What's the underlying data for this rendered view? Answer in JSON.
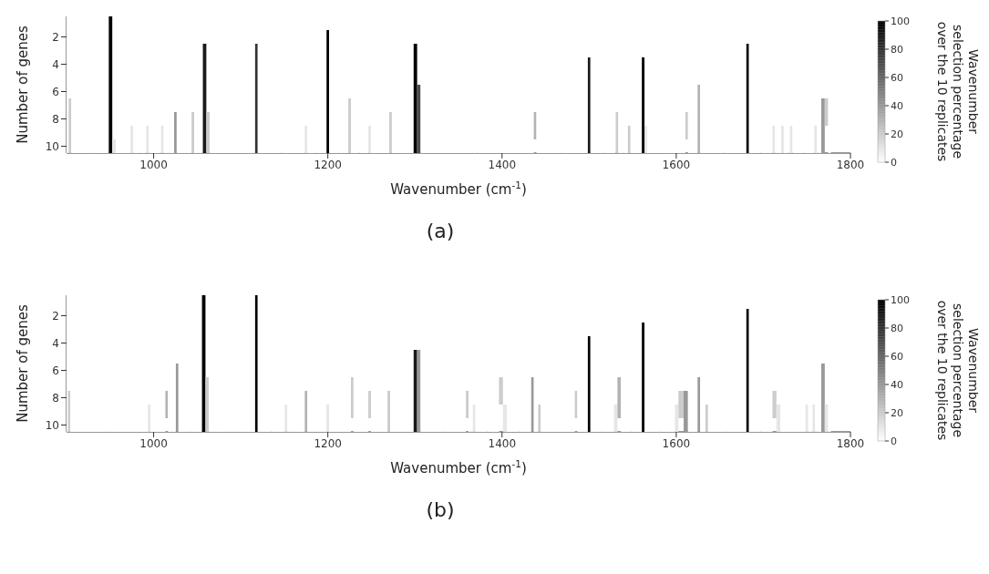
{
  "chart_data": [
    {
      "type": "heatmap",
      "xlabel": "Wavenumber (cm$^{-1}$)",
      "ylabel": "Number of genes",
      "clabel": "Wavenumber\nselection percentage\nover the 10 replicates",
      "annotations": [
        "(a)"
      ],
      "x": [
        901,
        904,
        907,
        947,
        950,
        955,
        958,
        972,
        975,
        978,
        990,
        993,
        996,
        1007,
        1010,
        1013,
        1022,
        1025,
        1028,
        1042,
        1045,
        1048,
        1055,
        1058,
        1063,
        1066,
        1115,
        1118,
        1121,
        1172,
        1175,
        1178,
        1197,
        1200,
        1203,
        1222,
        1225,
        1228,
        1245,
        1248,
        1251,
        1269,
        1272,
        1275,
        1297,
        1300,
        1305,
        1308,
        1435,
        1438,
        1441,
        1497,
        1500,
        1503,
        1529,
        1532,
        1535,
        1543,
        1546,
        1549,
        1559,
        1562,
        1565,
        1568,
        1609,
        1612,
        1615,
        1623,
        1626,
        1629,
        1679,
        1682,
        1685,
        1709,
        1712,
        1715,
        1719,
        1722,
        1725,
        1729,
        1732,
        1735,
        1757,
        1760,
        1763,
        1765,
        1768,
        1773,
        1776
      ],
      "xlim": [
        900,
        1800
      ],
      "xticks": [
        1000,
        1200,
        1400,
        1600,
        1800
      ],
      "ylim": [
        10.5,
        0.5
      ],
      "yticks": [
        2,
        4,
        6,
        8,
        10
      ],
      "clim": [
        0,
        100
      ],
      "cticks": [
        0,
        20,
        40,
        60,
        80,
        100
      ],
      "cells": [
        [
          0,
          null,
          0,
          0,
          100,
          null,
          0,
          0,
          null,
          0,
          0,
          null,
          0,
          0,
          null,
          0,
          0,
          null,
          0,
          0,
          null,
          0,
          0,
          null,
          null,
          0,
          0,
          null,
          0,
          0,
          null,
          0,
          0,
          null,
          0,
          0,
          null,
          0,
          0,
          null,
          0,
          0,
          null,
          0,
          0,
          null,
          null,
          0,
          0,
          null,
          0,
          0,
          null,
          0,
          0,
          null,
          0,
          0,
          null,
          0,
          0,
          null,
          null,
          0,
          0,
          null,
          0,
          0,
          null,
          0,
          0,
          null,
          0,
          0,
          null,
          0,
          0,
          null,
          0,
          0,
          null,
          0,
          0,
          null,
          0,
          0,
          null,
          null,
          0
        ],
        [
          0,
          null,
          0,
          0,
          100,
          null,
          0,
          0,
          null,
          0,
          0,
          null,
          0,
          0,
          null,
          0,
          0,
          null,
          0,
          0,
          null,
          0,
          0,
          null,
          null,
          0,
          0,
          null,
          0,
          0,
          null,
          0,
          0,
          100,
          0,
          0,
          null,
          0,
          0,
          null,
          0,
          0,
          null,
          0,
          0,
          null,
          null,
          0,
          0,
          null,
          0,
          0,
          null,
          0,
          0,
          null,
          0,
          0,
          null,
          0,
          0,
          null,
          null,
          0,
          0,
          null,
          0,
          0,
          null,
          0,
          0,
          null,
          0,
          0,
          null,
          0,
          0,
          null,
          0,
          0,
          null,
          0,
          0,
          null,
          0,
          0,
          null,
          null,
          0
        ],
        [
          0,
          null,
          0,
          0,
          100,
          null,
          0,
          0,
          null,
          0,
          0,
          null,
          0,
          0,
          null,
          0,
          0,
          null,
          0,
          0,
          null,
          0,
          0,
          90,
          null,
          0,
          0,
          80,
          0,
          0,
          null,
          0,
          0,
          100,
          0,
          0,
          null,
          0,
          0,
          null,
          0,
          0,
          null,
          0,
          0,
          100,
          null,
          0,
          0,
          null,
          0,
          0,
          null,
          0,
          0,
          null,
          0,
          0,
          null,
          0,
          0,
          null,
          null,
          0,
          0,
          null,
          0,
          0,
          null,
          0,
          0,
          100,
          0,
          0,
          null,
          0,
          0,
          null,
          0,
          0,
          null,
          0,
          0,
          null,
          0,
          0,
          null,
          null,
          0
        ],
        [
          0,
          null,
          0,
          0,
          100,
          null,
          0,
          0,
          null,
          0,
          0,
          null,
          0,
          0,
          null,
          0,
          0,
          null,
          0,
          0,
          null,
          0,
          0,
          90,
          null,
          0,
          0,
          80,
          0,
          0,
          null,
          0,
          0,
          100,
          0,
          0,
          null,
          0,
          0,
          null,
          0,
          0,
          null,
          0,
          0,
          100,
          null,
          0,
          0,
          null,
          0,
          0,
          90,
          0,
          0,
          null,
          0,
          0,
          null,
          0,
          0,
          100,
          null,
          0,
          0,
          null,
          0,
          0,
          null,
          0,
          0,
          100,
          0,
          0,
          null,
          0,
          0,
          null,
          0,
          0,
          null,
          0,
          0,
          null,
          0,
          0,
          null,
          null,
          0
        ],
        [
          0,
          null,
          0,
          0,
          100,
          null,
          0,
          0,
          null,
          0,
          0,
          null,
          0,
          0,
          null,
          0,
          0,
          null,
          0,
          0,
          null,
          0,
          0,
          90,
          null,
          0,
          0,
          80,
          0,
          0,
          null,
          0,
          0,
          100,
          0,
          0,
          null,
          0,
          0,
          null,
          0,
          0,
          null,
          0,
          0,
          100,
          null,
          0,
          0,
          null,
          0,
          0,
          90,
          0,
          0,
          null,
          0,
          0,
          null,
          0,
          0,
          100,
          null,
          0,
          0,
          null,
          0,
          0,
          null,
          0,
          0,
          100,
          0,
          0,
          null,
          0,
          0,
          null,
          0,
          0,
          null,
          0,
          0,
          null,
          0,
          0,
          null,
          null,
          0
        ],
        [
          0,
          null,
          0,
          0,
          100,
          null,
          0,
          0,
          null,
          0,
          0,
          null,
          0,
          0,
          null,
          0,
          0,
          null,
          0,
          0,
          null,
          0,
          0,
          90,
          null,
          0,
          0,
          80,
          0,
          0,
          null,
          0,
          0,
          100,
          0,
          0,
          null,
          0,
          0,
          null,
          0,
          0,
          null,
          0,
          0,
          100,
          70,
          0,
          0,
          null,
          0,
          0,
          90,
          0,
          0,
          null,
          0,
          0,
          null,
          0,
          0,
          100,
          null,
          0,
          0,
          null,
          0,
          0,
          30,
          0,
          0,
          100,
          0,
          0,
          null,
          0,
          0,
          null,
          0,
          0,
          null,
          0,
          0,
          null,
          0,
          0,
          null,
          null,
          0
        ],
        [
          0,
          20,
          0,
          0,
          100,
          null,
          0,
          0,
          null,
          0,
          0,
          null,
          0,
          0,
          null,
          0,
          0,
          null,
          0,
          0,
          null,
          0,
          0,
          90,
          null,
          0,
          0,
          80,
          0,
          0,
          null,
          0,
          0,
          100,
          0,
          0,
          20,
          0,
          0,
          null,
          0,
          0,
          null,
          0,
          0,
          100,
          70,
          0,
          0,
          null,
          0,
          0,
          90,
          0,
          0,
          null,
          0,
          0,
          null,
          0,
          0,
          100,
          null,
          0,
          0,
          null,
          0,
          0,
          30,
          0,
          0,
          100,
          0,
          0,
          null,
          0,
          0,
          null,
          0,
          0,
          null,
          0,
          0,
          null,
          0,
          0,
          40,
          20,
          0
        ],
        [
          0,
          20,
          0,
          0,
          100,
          null,
          0,
          0,
          null,
          0,
          0,
          null,
          0,
          0,
          null,
          0,
          0,
          40,
          0,
          0,
          20,
          0,
          0,
          90,
          20,
          0,
          0,
          80,
          0,
          0,
          null,
          0,
          0,
          100,
          0,
          0,
          20,
          0,
          0,
          null,
          0,
          0,
          20,
          0,
          0,
          100,
          70,
          0,
          0,
          30,
          0,
          0,
          90,
          0,
          0,
          20,
          0,
          0,
          null,
          0,
          0,
          100,
          null,
          0,
          0,
          20,
          0,
          0,
          30,
          0,
          0,
          100,
          0,
          0,
          null,
          0,
          0,
          null,
          0,
          0,
          null,
          0,
          0,
          null,
          0,
          0,
          40,
          20,
          0
        ],
        [
          0,
          20,
          0,
          0,
          100,
          null,
          0,
          0,
          10,
          0,
          0,
          10,
          0,
          0,
          10,
          0,
          0,
          40,
          0,
          0,
          20,
          0,
          0,
          90,
          20,
          0,
          0,
          80,
          0,
          0,
          10,
          0,
          0,
          100,
          0,
          0,
          20,
          0,
          0,
          10,
          0,
          0,
          20,
          0,
          0,
          100,
          70,
          0,
          0,
          30,
          0,
          0,
          90,
          0,
          0,
          20,
          0,
          0,
          20,
          0,
          0,
          100,
          10,
          0,
          0,
          20,
          0,
          0,
          30,
          0,
          0,
          100,
          0,
          0,
          10,
          0,
          0,
          10,
          0,
          0,
          10,
          0,
          0,
          10,
          0,
          0,
          40,
          null,
          0
        ],
        [
          0,
          20,
          0,
          0,
          100,
          10,
          0,
          0,
          10,
          0,
          0,
          10,
          0,
          0,
          10,
          0,
          0,
          40,
          0,
          0,
          20,
          0,
          0,
          90,
          20,
          0,
          0,
          80,
          0,
          0,
          10,
          0,
          0,
          100,
          0,
          0,
          20,
          0,
          0,
          10,
          0,
          0,
          20,
          0,
          0,
          100,
          70,
          0,
          0,
          null,
          0,
          0,
          90,
          0,
          0,
          20,
          0,
          0,
          20,
          0,
          0,
          100,
          10,
          0,
          0,
          null,
          0,
          0,
          30,
          0,
          0,
          100,
          0,
          0,
          10,
          0,
          0,
          10,
          0,
          0,
          10,
          0,
          0,
          10,
          0,
          0,
          40,
          null,
          0
        ]
      ]
    },
    {
      "type": "heatmap",
      "xlabel": "Wavenumber (cm$^{-1}$)",
      "ylabel": "Number of genes",
      "clabel": "Wavenumber\nselection percentage\nover the 10 replicates",
      "annotations": [
        "(b)"
      ],
      "x": [
        900,
        903,
        906,
        992,
        995,
        998,
        1012,
        1015,
        1018,
        1024,
        1027,
        1030,
        1054,
        1057,
        1062,
        1065,
        1115,
        1118,
        1121,
        1149,
        1152,
        1155,
        1172,
        1175,
        1178,
        1197,
        1200,
        1203,
        1225,
        1228,
        1231,
        1245,
        1248,
        1251,
        1267,
        1270,
        1273,
        1297,
        1300,
        1305,
        1308,
        1357,
        1360,
        1363,
        1365,
        1368,
        1371,
        1395,
        1398,
        1404,
        1407,
        1432,
        1435,
        1438,
        1440,
        1443,
        1446,
        1482,
        1485,
        1488,
        1497,
        1500,
        1503,
        1527,
        1530,
        1535,
        1538,
        1559,
        1562,
        1565,
        1597,
        1600,
        1605,
        1612,
        1615,
        1623,
        1626,
        1629,
        1632,
        1635,
        1638,
        1679,
        1682,
        1685,
        1709,
        1712,
        1718,
        1721,
        1747,
        1750,
        1753,
        1755,
        1758,
        1761,
        1765,
        1768,
        1773,
        1776
      ],
      "xlim": [
        900,
        1800
      ],
      "xticks": [
        1000,
        1200,
        1400,
        1600,
        1800
      ],
      "ylim": [
        10.5,
        0.5
      ],
      "yticks": [
        2,
        4,
        6,
        8,
        10
      ],
      "clim": [
        0,
        100
      ],
      "cticks": [
        0,
        20,
        40,
        60,
        80,
        100
      ],
      "cells": [
        [
          0,
          null,
          0,
          0,
          null,
          0,
          0,
          null,
          0,
          0,
          null,
          0,
          0,
          100,
          null,
          0,
          0,
          100,
          0,
          0,
          null,
          0,
          0,
          null,
          0,
          0,
          null,
          0,
          0,
          null,
          0,
          0,
          null,
          0,
          0,
          null,
          0,
          0,
          null,
          null,
          0,
          0,
          null,
          0,
          0,
          null,
          0,
          0,
          null,
          null,
          0,
          0,
          null,
          0,
          0,
          null,
          0,
          0,
          null,
          0,
          0,
          null,
          0,
          0,
          null,
          null,
          0,
          0,
          null,
          0,
          0,
          null,
          null,
          null,
          0,
          0,
          null,
          0,
          0,
          null,
          0,
          0,
          null,
          0,
          0,
          null,
          null,
          0,
          0,
          null,
          0,
          0,
          null,
          0,
          0,
          null,
          null,
          0
        ],
        [
          0,
          null,
          0,
          0,
          null,
          0,
          0,
          null,
          0,
          0,
          null,
          0,
          0,
          100,
          null,
          0,
          0,
          100,
          0,
          0,
          null,
          0,
          0,
          null,
          0,
          0,
          null,
          0,
          0,
          null,
          0,
          0,
          null,
          0,
          0,
          null,
          0,
          0,
          null,
          null,
          0,
          0,
          null,
          0,
          0,
          null,
          0,
          0,
          null,
          null,
          0,
          0,
          null,
          0,
          0,
          null,
          0,
          0,
          null,
          0,
          0,
          null,
          0,
          0,
          null,
          null,
          0,
          0,
          null,
          0,
          0,
          null,
          null,
          null,
          0,
          0,
          null,
          0,
          0,
          null,
          0,
          0,
          100,
          0,
          0,
          null,
          null,
          0,
          0,
          null,
          0,
          0,
          null,
          0,
          0,
          null,
          null,
          0
        ],
        [
          0,
          null,
          0,
          0,
          null,
          0,
          0,
          null,
          0,
          0,
          null,
          0,
          0,
          100,
          null,
          0,
          0,
          100,
          0,
          0,
          null,
          0,
          0,
          null,
          0,
          0,
          null,
          0,
          0,
          null,
          0,
          0,
          null,
          0,
          0,
          null,
          0,
          0,
          null,
          null,
          0,
          0,
          null,
          0,
          0,
          null,
          0,
          0,
          null,
          null,
          0,
          0,
          null,
          0,
          0,
          null,
          0,
          0,
          null,
          0,
          0,
          null,
          0,
          0,
          null,
          null,
          0,
          0,
          100,
          0,
          0,
          null,
          null,
          null,
          0,
          0,
          null,
          0,
          0,
          null,
          0,
          0,
          100,
          0,
          0,
          null,
          null,
          0,
          0,
          null,
          0,
          0,
          null,
          0,
          0,
          null,
          null,
          0
        ],
        [
          0,
          null,
          0,
          0,
          null,
          0,
          0,
          null,
          0,
          0,
          null,
          0,
          0,
          100,
          null,
          0,
          0,
          100,
          0,
          0,
          null,
          0,
          0,
          null,
          0,
          0,
          null,
          0,
          0,
          null,
          0,
          0,
          null,
          0,
          0,
          null,
          0,
          0,
          null,
          null,
          0,
          0,
          null,
          0,
          0,
          null,
          0,
          0,
          null,
          null,
          0,
          0,
          null,
          0,
          0,
          null,
          0,
          0,
          null,
          0,
          0,
          100,
          0,
          0,
          null,
          null,
          0,
          0,
          100,
          0,
          0,
          null,
          null,
          null,
          0,
          0,
          null,
          0,
          0,
          null,
          0,
          0,
          100,
          0,
          0,
          null,
          null,
          0,
          0,
          null,
          0,
          0,
          null,
          0,
          0,
          null,
          null,
          0
        ],
        [
          0,
          null,
          0,
          0,
          null,
          0,
          0,
          null,
          0,
          0,
          null,
          0,
          0,
          100,
          null,
          0,
          0,
          100,
          0,
          0,
          null,
          0,
          0,
          null,
          0,
          0,
          null,
          0,
          0,
          null,
          0,
          0,
          null,
          0,
          0,
          null,
          0,
          0,
          90,
          40,
          0,
          0,
          null,
          0,
          0,
          null,
          0,
          0,
          null,
          null,
          0,
          0,
          null,
          0,
          0,
          null,
          0,
          0,
          null,
          0,
          0,
          100,
          0,
          0,
          null,
          null,
          0,
          0,
          100,
          0,
          0,
          null,
          null,
          null,
          0,
          0,
          null,
          0,
          0,
          null,
          0,
          0,
          100,
          0,
          0,
          null,
          null,
          0,
          0,
          null,
          0,
          0,
          null,
          0,
          0,
          null,
          null,
          0
        ],
        [
          0,
          null,
          0,
          0,
          null,
          0,
          0,
          null,
          0,
          0,
          40,
          0,
          0,
          100,
          null,
          0,
          0,
          100,
          0,
          0,
          null,
          0,
          0,
          null,
          0,
          0,
          null,
          0,
          0,
          null,
          0,
          0,
          null,
          0,
          0,
          null,
          0,
          0,
          90,
          40,
          0,
          0,
          null,
          0,
          0,
          null,
          0,
          0,
          null,
          null,
          0,
          0,
          null,
          0,
          0,
          null,
          0,
          0,
          null,
          0,
          0,
          100,
          0,
          0,
          null,
          null,
          0,
          0,
          100,
          0,
          0,
          null,
          null,
          null,
          0,
          0,
          null,
          0,
          0,
          null,
          0,
          0,
          100,
          0,
          0,
          null,
          null,
          0,
          0,
          null,
          0,
          0,
          null,
          0,
          0,
          40,
          null,
          0
        ],
        [
          0,
          null,
          0,
          0,
          null,
          0,
          0,
          null,
          0,
          0,
          40,
          0,
          0,
          100,
          20,
          0,
          0,
          100,
          0,
          0,
          null,
          0,
          0,
          null,
          0,
          0,
          null,
          0,
          0,
          20,
          0,
          0,
          null,
          0,
          0,
          null,
          0,
          0,
          90,
          40,
          0,
          0,
          null,
          0,
          0,
          null,
          0,
          0,
          20,
          null,
          0,
          0,
          40,
          0,
          0,
          null,
          0,
          0,
          null,
          0,
          0,
          100,
          0,
          0,
          null,
          30,
          0,
          0,
          100,
          0,
          0,
          null,
          null,
          null,
          0,
          0,
          40,
          0,
          0,
          null,
          0,
          0,
          100,
          0,
          0,
          null,
          null,
          0,
          0,
          null,
          0,
          0,
          null,
          0,
          0,
          40,
          null,
          0
        ],
        [
          0,
          20,
          0,
          0,
          null,
          0,
          0,
          30,
          0,
          0,
          40,
          0,
          0,
          100,
          20,
          0,
          0,
          100,
          0,
          0,
          null,
          0,
          0,
          30,
          0,
          0,
          null,
          0,
          0,
          20,
          0,
          0,
          20,
          0,
          0,
          20,
          0,
          0,
          90,
          40,
          0,
          0,
          20,
          0,
          0,
          null,
          0,
          0,
          20,
          null,
          0,
          0,
          40,
          0,
          0,
          null,
          0,
          0,
          20,
          0,
          0,
          100,
          0,
          0,
          null,
          30,
          0,
          0,
          100,
          0,
          0,
          null,
          20,
          40,
          0,
          0,
          40,
          0,
          0,
          null,
          0,
          0,
          100,
          0,
          0,
          20,
          null,
          0,
          0,
          null,
          0,
          0,
          null,
          0,
          0,
          40,
          null,
          0
        ],
        [
          0,
          20,
          0,
          0,
          10,
          0,
          0,
          30,
          0,
          0,
          40,
          0,
          0,
          100,
          20,
          0,
          0,
          100,
          0,
          0,
          10,
          0,
          0,
          30,
          0,
          0,
          10,
          0,
          0,
          20,
          0,
          0,
          20,
          0,
          0,
          20,
          0,
          0,
          90,
          40,
          0,
          0,
          20,
          0,
          0,
          10,
          0,
          0,
          null,
          10,
          0,
          0,
          40,
          0,
          0,
          20,
          0,
          0,
          20,
          0,
          0,
          100,
          0,
          0,
          10,
          30,
          0,
          0,
          100,
          0,
          0,
          10,
          20,
          40,
          0,
          0,
          40,
          0,
          0,
          20,
          0,
          0,
          100,
          0,
          0,
          20,
          10,
          0,
          0,
          10,
          0,
          0,
          10,
          0,
          0,
          40,
          10,
          0
        ],
        [
          0,
          20,
          0,
          0,
          10,
          0,
          0,
          null,
          0,
          0,
          40,
          0,
          0,
          100,
          20,
          0,
          0,
          100,
          0,
          0,
          10,
          0,
          0,
          30,
          0,
          0,
          10,
          0,
          0,
          null,
          0,
          0,
          null,
          0,
          0,
          20,
          0,
          0,
          90,
          40,
          0,
          0,
          null,
          0,
          0,
          10,
          0,
          0,
          null,
          10,
          0,
          0,
          40,
          0,
          0,
          20,
          0,
          0,
          null,
          0,
          0,
          100,
          0,
          0,
          10,
          null,
          0,
          0,
          100,
          0,
          0,
          10,
          null,
          40,
          0,
          0,
          40,
          0,
          0,
          20,
          0,
          0,
          100,
          0,
          0,
          null,
          10,
          0,
          0,
          10,
          0,
          0,
          10,
          0,
          0,
          40,
          10,
          0
        ]
      ]
    }
  ]
}
